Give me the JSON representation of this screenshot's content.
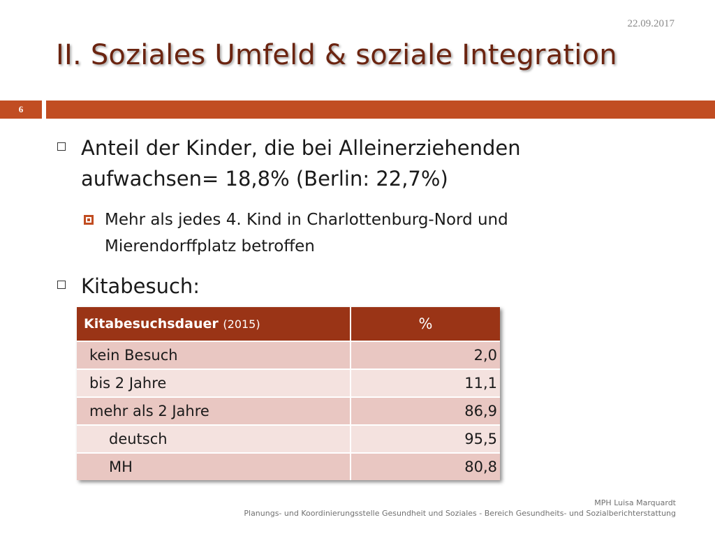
{
  "header": {
    "date": "22.09.2017",
    "title": "II. Soziales Umfeld & soziale Integration",
    "page_number": "6"
  },
  "bullets": [
    {
      "text": "Anteil der Kinder, die bei Alleinerziehenden aufwachsen= 18,8% (Berlin: 22,7%)"
    },
    {
      "text": "Mehr als jedes 4. Kind in Charlottenburg-Nord und Mierendorffplatz betroffen"
    },
    {
      "text": "Kitabesuch:"
    }
  ],
  "table": {
    "header_label": "Kitabesuchsdauer",
    "header_year": "(2015)",
    "header_value": "%",
    "rows": [
      {
        "label": "kein Besuch",
        "value": "2,0"
      },
      {
        "label": "bis 2 Jahre",
        "value": "11,1"
      },
      {
        "label": "mehr als 2 Jahre",
        "value": "86,9"
      },
      {
        "label": "deutsch",
        "value": "95,5"
      },
      {
        "label": "MH",
        "value": "80,8"
      }
    ]
  },
  "footer": {
    "author": "MPH Luisa Marquardt",
    "org": "Planungs- und Koordinierungsstelle Gesundheit und Soziales  - Bereich Gesundheits- und Sozialberichterstattung"
  },
  "colors": {
    "accent": "#c14d22",
    "title": "#6b2410",
    "table_header": "#9a3416"
  }
}
